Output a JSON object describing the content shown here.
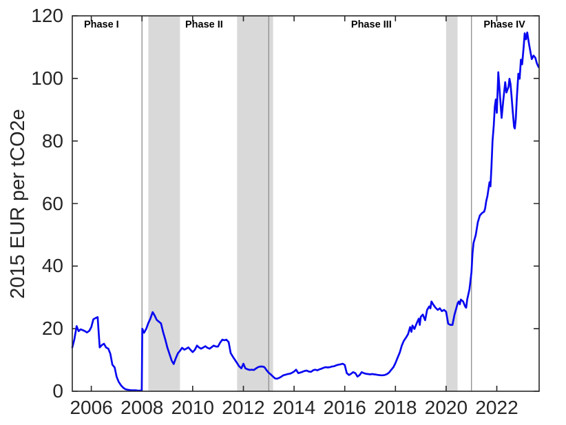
{
  "chart_data": {
    "type": "line",
    "title": "",
    "xlabel": "",
    "ylabel": "2015 EUR per tCO2e",
    "xlim": [
      2005.25,
      2023.67
    ],
    "ylim": [
      0,
      120
    ],
    "x_ticks": [
      2006,
      2008,
      2010,
      2012,
      2014,
      2016,
      2018,
      2020,
      2022
    ],
    "y_ticks": [
      0,
      20,
      40,
      60,
      80,
      100,
      120
    ],
    "grid": false,
    "legend": "none",
    "axis_color": "#262626",
    "line_color": "#0808f0",
    "band_color": "#d9d9d9",
    "boundary_line_color": "#8c8c8c",
    "phases": [
      {
        "label": "Phase I",
        "label_x": 2006.4
      },
      {
        "label": "Phase II",
        "label_x": 2010.45
      },
      {
        "label": "Phase III",
        "label_x": 2017.05
      },
      {
        "label": "Phase IV",
        "label_x": 2022.3
      }
    ],
    "phase_boundaries_x": [
      2008,
      2013,
      2021
    ],
    "shaded_bands": [
      [
        2008.25,
        2009.5
      ],
      [
        2011.75,
        2013.17
      ],
      [
        2020.0,
        2020.45
      ]
    ],
    "series": [
      {
        "points": [
          [
            2005.25,
            14
          ],
          [
            2005.33,
            16.5
          ],
          [
            2005.42,
            20.8
          ],
          [
            2005.5,
            19.2
          ],
          [
            2005.58,
            19.8
          ],
          [
            2005.67,
            19.5
          ],
          [
            2005.75,
            19.2
          ],
          [
            2005.83,
            18.8
          ],
          [
            2005.92,
            19.3
          ],
          [
            2006,
            20.5
          ],
          [
            2006.08,
            23
          ],
          [
            2006.17,
            23.4
          ],
          [
            2006.25,
            23.7
          ],
          [
            2006.33,
            14
          ],
          [
            2006.42,
            14.8
          ],
          [
            2006.5,
            15.2
          ],
          [
            2006.58,
            14
          ],
          [
            2006.67,
            13.6
          ],
          [
            2006.75,
            12
          ],
          [
            2006.83,
            8.5
          ],
          [
            2006.92,
            7.6
          ],
          [
            2007,
            4.6
          ],
          [
            2007.08,
            3
          ],
          [
            2007.17,
            1.9
          ],
          [
            2007.25,
            1.2
          ],
          [
            2007.33,
            0.7
          ],
          [
            2007.42,
            0.5
          ],
          [
            2007.5,
            0.4
          ],
          [
            2007.58,
            0.3
          ],
          [
            2007.67,
            0.3
          ],
          [
            2007.75,
            0.3
          ],
          [
            2007.83,
            0.2
          ],
          [
            2007.92,
            0.2
          ],
          [
            2007.99,
            0.3
          ],
          [
            2008.01,
            20
          ],
          [
            2008.08,
            18.7
          ],
          [
            2008.17,
            20
          ],
          [
            2008.25,
            21.8
          ],
          [
            2008.33,
            23.2
          ],
          [
            2008.42,
            25.3
          ],
          [
            2008.5,
            24.2
          ],
          [
            2008.58,
            22.8
          ],
          [
            2008.67,
            22.2
          ],
          [
            2008.75,
            21.7
          ],
          [
            2008.83,
            19
          ],
          [
            2008.92,
            16.5
          ],
          [
            2009,
            14
          ],
          [
            2009.08,
            12
          ],
          [
            2009.17,
            9.8
          ],
          [
            2009.25,
            8.7
          ],
          [
            2009.33,
            10.5
          ],
          [
            2009.42,
            12.2
          ],
          [
            2009.5,
            12.9
          ],
          [
            2009.58,
            13.9
          ],
          [
            2009.67,
            13.3
          ],
          [
            2009.75,
            13.6
          ],
          [
            2009.83,
            14
          ],
          [
            2009.92,
            13.2
          ],
          [
            2010,
            12.5
          ],
          [
            2010.08,
            13.2
          ],
          [
            2010.17,
            14.6
          ],
          [
            2010.25,
            14
          ],
          [
            2010.33,
            13.6
          ],
          [
            2010.42,
            14
          ],
          [
            2010.5,
            14.4
          ],
          [
            2010.58,
            13.9
          ],
          [
            2010.67,
            13.6
          ],
          [
            2010.75,
            14.1
          ],
          [
            2010.83,
            14.6
          ],
          [
            2010.92,
            14.3
          ],
          [
            2011,
            14.3
          ],
          [
            2011.08,
            15.5
          ],
          [
            2011.17,
            16.5
          ],
          [
            2011.25,
            16.3
          ],
          [
            2011.33,
            16.5
          ],
          [
            2011.42,
            15.7
          ],
          [
            2011.5,
            12.2
          ],
          [
            2011.58,
            11.1
          ],
          [
            2011.67,
            10
          ],
          [
            2011.75,
            9
          ],
          [
            2011.83,
            8
          ],
          [
            2011.92,
            7.3
          ],
          [
            2012,
            8.8
          ],
          [
            2012.08,
            7.3
          ],
          [
            2012.17,
            7
          ],
          [
            2012.25,
            6.8
          ],
          [
            2012.33,
            6.9
          ],
          [
            2012.42,
            6.8
          ],
          [
            2012.5,
            7.3
          ],
          [
            2012.58,
            7.7
          ],
          [
            2012.67,
            7.9
          ],
          [
            2012.75,
            7.9
          ],
          [
            2012.83,
            7.7
          ],
          [
            2012.92,
            6.7
          ],
          [
            2013,
            5.9
          ],
          [
            2013.08,
            5.4
          ],
          [
            2013.17,
            4.7
          ],
          [
            2013.25,
            4.1
          ],
          [
            2013.33,
            4
          ],
          [
            2013.42,
            4.3
          ],
          [
            2013.5,
            4.7
          ],
          [
            2013.58,
            5.1
          ],
          [
            2013.67,
            5.3
          ],
          [
            2013.75,
            5.5
          ],
          [
            2013.83,
            5.6
          ],
          [
            2013.92,
            5.9
          ],
          [
            2014,
            6.3
          ],
          [
            2014.08,
            6.9
          ],
          [
            2014.17,
            5.8
          ],
          [
            2014.25,
            6
          ],
          [
            2014.33,
            6.2
          ],
          [
            2014.42,
            6.5
          ],
          [
            2014.5,
            6.6
          ],
          [
            2014.58,
            6.3
          ],
          [
            2014.67,
            6.2
          ],
          [
            2014.75,
            6.7
          ],
          [
            2014.83,
            6.9
          ],
          [
            2014.92,
            6.7
          ],
          [
            2015,
            7
          ],
          [
            2015.08,
            7.2
          ],
          [
            2015.17,
            7.5
          ],
          [
            2015.25,
            7.7
          ],
          [
            2015.33,
            7.6
          ],
          [
            2015.42,
            7.7
          ],
          [
            2015.5,
            7.9
          ],
          [
            2015.58,
            8
          ],
          [
            2015.67,
            8.3
          ],
          [
            2015.75,
            8.5
          ],
          [
            2015.83,
            8.6
          ],
          [
            2015.92,
            8.8
          ],
          [
            2016,
            8.4
          ],
          [
            2016.08,
            5.8
          ],
          [
            2016.17,
            5.2
          ],
          [
            2016.25,
            5.6
          ],
          [
            2016.33,
            6.1
          ],
          [
            2016.42,
            5.8
          ],
          [
            2016.5,
            4.7
          ],
          [
            2016.58,
            5.1
          ],
          [
            2016.67,
            6.1
          ],
          [
            2016.75,
            5.8
          ],
          [
            2016.83,
            5.6
          ],
          [
            2016.92,
            5.5
          ],
          [
            2017,
            5.4
          ],
          [
            2017.08,
            5.5
          ],
          [
            2017.17,
            5.4
          ],
          [
            2017.25,
            5.3
          ],
          [
            2017.33,
            5.2
          ],
          [
            2017.42,
            5.1
          ],
          [
            2017.5,
            5.1
          ],
          [
            2017.58,
            5.2
          ],
          [
            2017.67,
            5.5
          ],
          [
            2017.75,
            6
          ],
          [
            2017.83,
            6.8
          ],
          [
            2017.92,
            7.7
          ],
          [
            2018,
            9
          ],
          [
            2018.08,
            10.6
          ],
          [
            2018.17,
            12.4
          ],
          [
            2018.25,
            14.6
          ],
          [
            2018.33,
            16.1
          ],
          [
            2018.42,
            17.2
          ],
          [
            2018.5,
            18.3
          ],
          [
            2018.58,
            20.5
          ],
          [
            2018.63,
            19
          ],
          [
            2018.67,
            21
          ],
          [
            2018.75,
            19.9
          ],
          [
            2018.83,
            21.6
          ],
          [
            2018.92,
            23.2
          ],
          [
            2018.96,
            21.2
          ],
          [
            2019,
            23.8
          ],
          [
            2019.08,
            24.5
          ],
          [
            2019.17,
            22.7
          ],
          [
            2019.25,
            26
          ],
          [
            2019.33,
            27.1
          ],
          [
            2019.38,
            26.5
          ],
          [
            2019.42,
            28.7
          ],
          [
            2019.5,
            27.6
          ],
          [
            2019.58,
            26.7
          ],
          [
            2019.67,
            26
          ],
          [
            2019.75,
            26.5
          ],
          [
            2019.83,
            25.6
          ],
          [
            2019.92,
            26
          ],
          [
            2020,
            25.4
          ],
          [
            2020.08,
            21.6
          ],
          [
            2020.17,
            21.2
          ],
          [
            2020.25,
            21.2
          ],
          [
            2020.33,
            24.5
          ],
          [
            2020.42,
            27.1
          ],
          [
            2020.46,
            28.2
          ],
          [
            2020.5,
            28.7
          ],
          [
            2020.54,
            27.8
          ],
          [
            2020.58,
            29.3
          ],
          [
            2020.67,
            28.7
          ],
          [
            2020.75,
            27.1
          ],
          [
            2020.79,
            26.7
          ],
          [
            2020.83,
            29.3
          ],
          [
            2020.88,
            31.1
          ],
          [
            2020.92,
            32.6
          ],
          [
            2021,
            38
          ],
          [
            2021.04,
            44
          ],
          [
            2021.08,
            47.4
          ],
          [
            2021.17,
            50
          ],
          [
            2021.25,
            54
          ],
          [
            2021.33,
            56.2
          ],
          [
            2021.42,
            57
          ],
          [
            2021.5,
            57.4
          ],
          [
            2021.54,
            58.5
          ],
          [
            2021.58,
            60.7
          ],
          [
            2021.63,
            62.4
          ],
          [
            2021.71,
            66.8
          ],
          [
            2021.75,
            65.5
          ],
          [
            2021.79,
            72
          ],
          [
            2021.83,
            80
          ],
          [
            2021.88,
            85
          ],
          [
            2021.92,
            91
          ],
          [
            2021.96,
            93.3
          ],
          [
            2022,
            89
          ],
          [
            2022.06,
            102
          ],
          [
            2022.13,
            94
          ],
          [
            2022.19,
            87.4
          ],
          [
            2022.25,
            92.5
          ],
          [
            2022.33,
            98.8
          ],
          [
            2022.38,
            95.5
          ],
          [
            2022.46,
            97.3
          ],
          [
            2022.5,
            99.9
          ],
          [
            2022.54,
            98.2
          ],
          [
            2022.58,
            94.4
          ],
          [
            2022.63,
            89.3
          ],
          [
            2022.68,
            84.5
          ],
          [
            2022.71,
            84
          ],
          [
            2022.75,
            87.1
          ],
          [
            2022.79,
            93.8
          ],
          [
            2022.85,
            101.5
          ],
          [
            2022.9,
            99.9
          ],
          [
            2022.95,
            106
          ],
          [
            2023,
            104.5
          ],
          [
            2023.06,
            110
          ],
          [
            2023.1,
            114.4
          ],
          [
            2023.15,
            112.5
          ],
          [
            2023.2,
            114.7
          ],
          [
            2023.27,
            111
          ],
          [
            2023.33,
            108.3
          ],
          [
            2023.38,
            106.2
          ],
          [
            2023.45,
            107.3
          ],
          [
            2023.52,
            106.6
          ],
          [
            2023.58,
            104.8
          ],
          [
            2023.65,
            103.6
          ]
        ]
      }
    ]
  }
}
